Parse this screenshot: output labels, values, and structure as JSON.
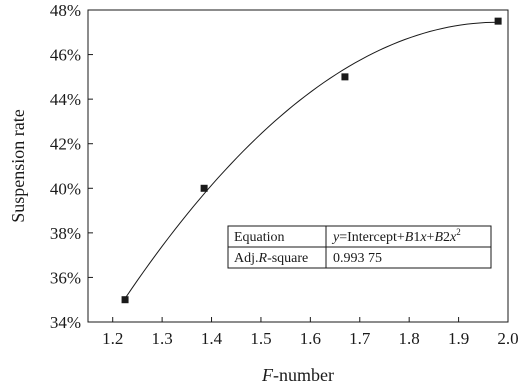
{
  "chart_data": {
    "type": "scatter",
    "xlabel": {
      "italic": "F",
      "rest": "-number"
    },
    "ylabel": "Suspension rate",
    "xlim": [
      1.15,
      2.0
    ],
    "ylim": [
      34,
      48
    ],
    "x_ticks": [
      "1.2",
      "1.3",
      "1.4",
      "1.5",
      "1.6",
      "1.7",
      "1.8",
      "1.9",
      "2.0"
    ],
    "x_tick_values": [
      1.2,
      1.3,
      1.4,
      1.5,
      1.6,
      1.7,
      1.8,
      1.9,
      2.0
    ],
    "y_ticks": [
      "34%",
      "36%",
      "38%",
      "40%",
      "42%",
      "44%",
      "46%",
      "48%"
    ],
    "y_tick_values": [
      34,
      36,
      38,
      40,
      42,
      44,
      46,
      48
    ],
    "points": [
      {
        "x": 1.225,
        "y": 35.0
      },
      {
        "x": 1.385,
        "y": 40.0
      },
      {
        "x": 1.67,
        "y": 45.0
      },
      {
        "x": 1.98,
        "y": 47.5
      }
    ],
    "fit_curve": {
      "kind": "quadratic",
      "vertex_x": 1.98,
      "vertex_y": 47.45,
      "a": -21.74,
      "x_range": [
        1.225,
        1.98
      ]
    },
    "fit_table": {
      "rows": [
        {
          "label": "Equation",
          "value_parts": [
            {
              "t": "y",
              "i": true
            },
            {
              "t": "=Intercept+",
              "i": false
            },
            {
              "t": "B",
              "i": true
            },
            {
              "t": "1",
              "i": false
            },
            {
              "t": "x",
              "i": true
            },
            {
              "t": "+",
              "i": false
            },
            {
              "t": "B",
              "i": true
            },
            {
              "t": "2",
              "i": false
            },
            {
              "t": "x",
              "i": true
            },
            {
              "t": "2",
              "i": false,
              "sup": true
            }
          ]
        },
        {
          "label_parts": [
            {
              "t": "Adj.",
              "i": false
            },
            {
              "t": "R",
              "i": true
            },
            {
              "t": "-square",
              "i": false
            }
          ],
          "value": "0.993 75"
        }
      ]
    }
  }
}
